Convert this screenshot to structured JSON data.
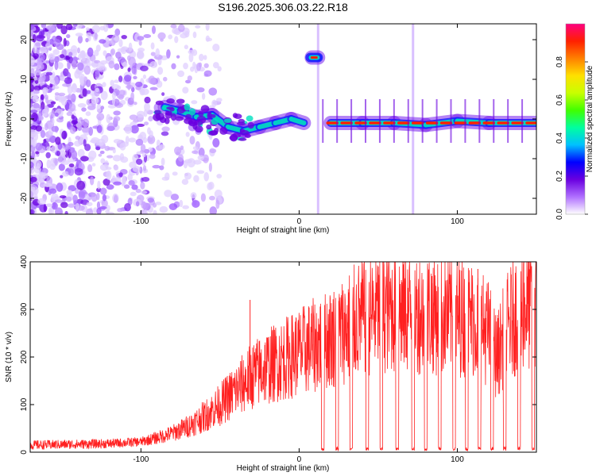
{
  "title": "S196.2025.306.03.22.R18",
  "chart_data": [
    {
      "type": "heatmap",
      "name": "spectrogram",
      "xlabel": "Height of straight line (km)",
      "ylabel": "Frequency (Hz)",
      "xlim": [
        -170,
        150
      ],
      "ylim": [
        -24,
        24
      ],
      "xticks": [
        -100,
        0,
        100
      ],
      "yticks": [
        -20,
        -10,
        0,
        10,
        20
      ],
      "colorbar": {
        "label": "Normalized spectral amplitude",
        "range": [
          0,
          1
        ],
        "ticks": [
          0.0,
          0.2,
          0.4,
          0.6,
          0.8
        ],
        "tick_labels": [
          "0.0",
          "0.2",
          "0.4",
          "0.6",
          "0.8"
        ],
        "colors": [
          "#ffffff",
          "#b070ff",
          "#6a00e0",
          "#0000ff",
          "#00c0ff",
          "#00ffa0",
          "#40ff00",
          "#c8ff00",
          "#ffe000",
          "#ff8000",
          "#ff2000",
          "#ff0080"
        ]
      },
      "ridge": [
        {
          "x": -85,
          "y": 3
        },
        {
          "x": -75,
          "y": 2
        },
        {
          "x": -65,
          "y": 0.5
        },
        {
          "x": -55,
          "y": 1
        },
        {
          "x": -45,
          "y": -2
        },
        {
          "x": -35,
          "y": -3
        },
        {
          "x": -25,
          "y": -2
        },
        {
          "x": -15,
          "y": -1
        },
        {
          "x": -5,
          "y": 0
        },
        {
          "x": 3,
          "y": -1
        },
        {
          "x": 8,
          "y": 15.5
        },
        {
          "x": 12,
          "y": 15.5
        },
        {
          "x": 20,
          "y": -1
        },
        {
          "x": 40,
          "y": -1
        },
        {
          "x": 60,
          "y": -1
        },
        {
          "x": 80,
          "y": -1.5
        },
        {
          "x": 100,
          "y": -0.5
        },
        {
          "x": 120,
          "y": -1
        },
        {
          "x": 150,
          "y": -1
        }
      ],
      "vertical_stripes_x": [
        12,
        72
      ]
    },
    {
      "type": "line",
      "name": "snr",
      "xlabel": "Height of straight line (km)",
      "ylabel": "SNR (10 * v/v)",
      "xlim": [
        -170,
        150
      ],
      "ylim": [
        0,
        400
      ],
      "xticks": [
        -100,
        0,
        100
      ],
      "yticks": [
        0,
        100,
        200,
        300,
        400
      ],
      "color": "#ff2020",
      "envelope": [
        {
          "x": -170,
          "y": 15
        },
        {
          "x": -120,
          "y": 18
        },
        {
          "x": -100,
          "y": 22
        },
        {
          "x": -90,
          "y": 30
        },
        {
          "x": -80,
          "y": 40
        },
        {
          "x": -70,
          "y": 55
        },
        {
          "x": -60,
          "y": 75
        },
        {
          "x": -50,
          "y": 100
        },
        {
          "x": -40,
          "y": 130
        },
        {
          "x": -30,
          "y": 160
        },
        {
          "x": -20,
          "y": 180
        },
        {
          "x": -10,
          "y": 195
        },
        {
          "x": 0,
          "y": 210
        },
        {
          "x": 10,
          "y": 225
        },
        {
          "x": 20,
          "y": 240
        },
        {
          "x": 30,
          "y": 260
        },
        {
          "x": 40,
          "y": 285
        },
        {
          "x": 50,
          "y": 295
        },
        {
          "x": 60,
          "y": 300
        },
        {
          "x": 70,
          "y": 295
        },
        {
          "x": 80,
          "y": 295
        },
        {
          "x": 90,
          "y": 290
        },
        {
          "x": 100,
          "y": 285
        },
        {
          "x": 110,
          "y": 280
        },
        {
          "x": 120,
          "y": 250
        },
        {
          "x": 125,
          "y": 200
        },
        {
          "x": 130,
          "y": 250
        },
        {
          "x": 140,
          "y": 310
        },
        {
          "x": 150,
          "y": 300
        }
      ],
      "dropouts_x": [
        15,
        24,
        33,
        43,
        52,
        62,
        72,
        80,
        89,
        98,
        106,
        114,
        122,
        130,
        139,
        148
      ],
      "spikes": [
        {
          "x": -31,
          "y": 320
        },
        {
          "x": 65,
          "y": 350
        },
        {
          "x": 84,
          "y": 370
        },
        {
          "x": 113,
          "y": 385
        },
        {
          "x": 142,
          "y": 400
        }
      ]
    }
  ]
}
